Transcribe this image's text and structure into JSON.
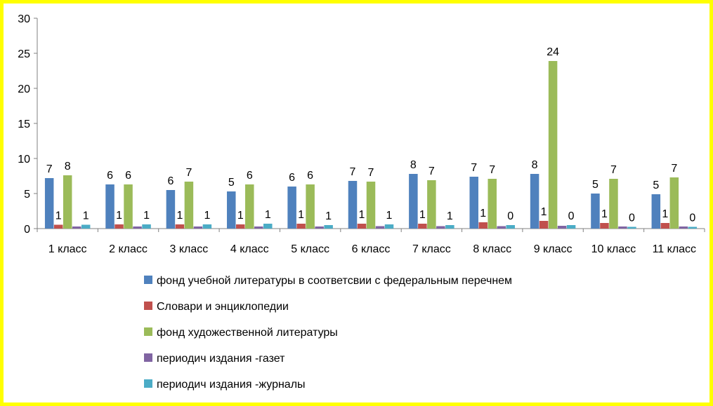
{
  "chart_data": {
    "type": "bar",
    "title": "",
    "xlabel": "",
    "ylabel": "",
    "ylim": [
      0,
      30
    ],
    "yticks": [
      0,
      5,
      10,
      15,
      20,
      25,
      30
    ],
    "grid": false,
    "legend_position": "bottom",
    "categories": [
      "1 класс",
      "2 класс",
      "3 класс",
      "4 класс",
      "5 класс",
      "6 класс",
      "7 класс",
      "8 класс",
      "9 класс",
      "10 класс",
      "11 класс"
    ],
    "series": [
      {
        "name": "фонд учебной литературы в соответсвии с федеральным перечнем",
        "color": "#4F81BD",
        "values": [
          7.2,
          6.3,
          5.5,
          5.3,
          6.0,
          6.8,
          7.8,
          7.4,
          7.8,
          5.0,
          4.9
        ],
        "labels": [
          "7",
          "6",
          "6",
          "5",
          "6",
          "7",
          "8",
          "7",
          "8",
          "5",
          "5"
        ]
      },
      {
        "name": "Словари и энциклопедии",
        "color": "#C0504D",
        "values": [
          0.55,
          0.6,
          0.6,
          0.6,
          0.7,
          0.7,
          0.7,
          0.9,
          1.1,
          0.8,
          0.8
        ],
        "labels": [
          "1",
          "1",
          "1",
          "1",
          "1",
          "1",
          "1",
          "1",
          "1",
          "1",
          "1"
        ]
      },
      {
        "name": "фонд художественной литературы",
        "color": "#9BBB59",
        "values": [
          7.6,
          6.3,
          6.7,
          6.3,
          6.3,
          6.7,
          6.9,
          7.1,
          23.9,
          7.1,
          7.3
        ],
        "labels": [
          "8",
          "6",
          "7",
          "6",
          "6",
          "7",
          "7",
          "7",
          "24",
          "7",
          "7"
        ]
      },
      {
        "name": "периодич издания -газет",
        "color": "#8064A2",
        "values": [
          0.3,
          0.3,
          0.3,
          0.3,
          0.3,
          0.35,
          0.35,
          0.35,
          0.4,
          0.3,
          0.3
        ],
        "labels": [
          "",
          "",
          "",
          "",
          "",
          "",
          "",
          "",
          "",
          "",
          ""
        ]
      },
      {
        "name": "периодич издания -журналы",
        "color": "#4BACC6",
        "values": [
          0.55,
          0.6,
          0.6,
          0.7,
          0.5,
          0.6,
          0.5,
          0.5,
          0.5,
          0.25,
          0.25
        ],
        "labels": [
          "1",
          "1",
          "1",
          "1",
          "1",
          "1",
          "1",
          "0",
          "0",
          "0",
          "0"
        ]
      }
    ]
  }
}
